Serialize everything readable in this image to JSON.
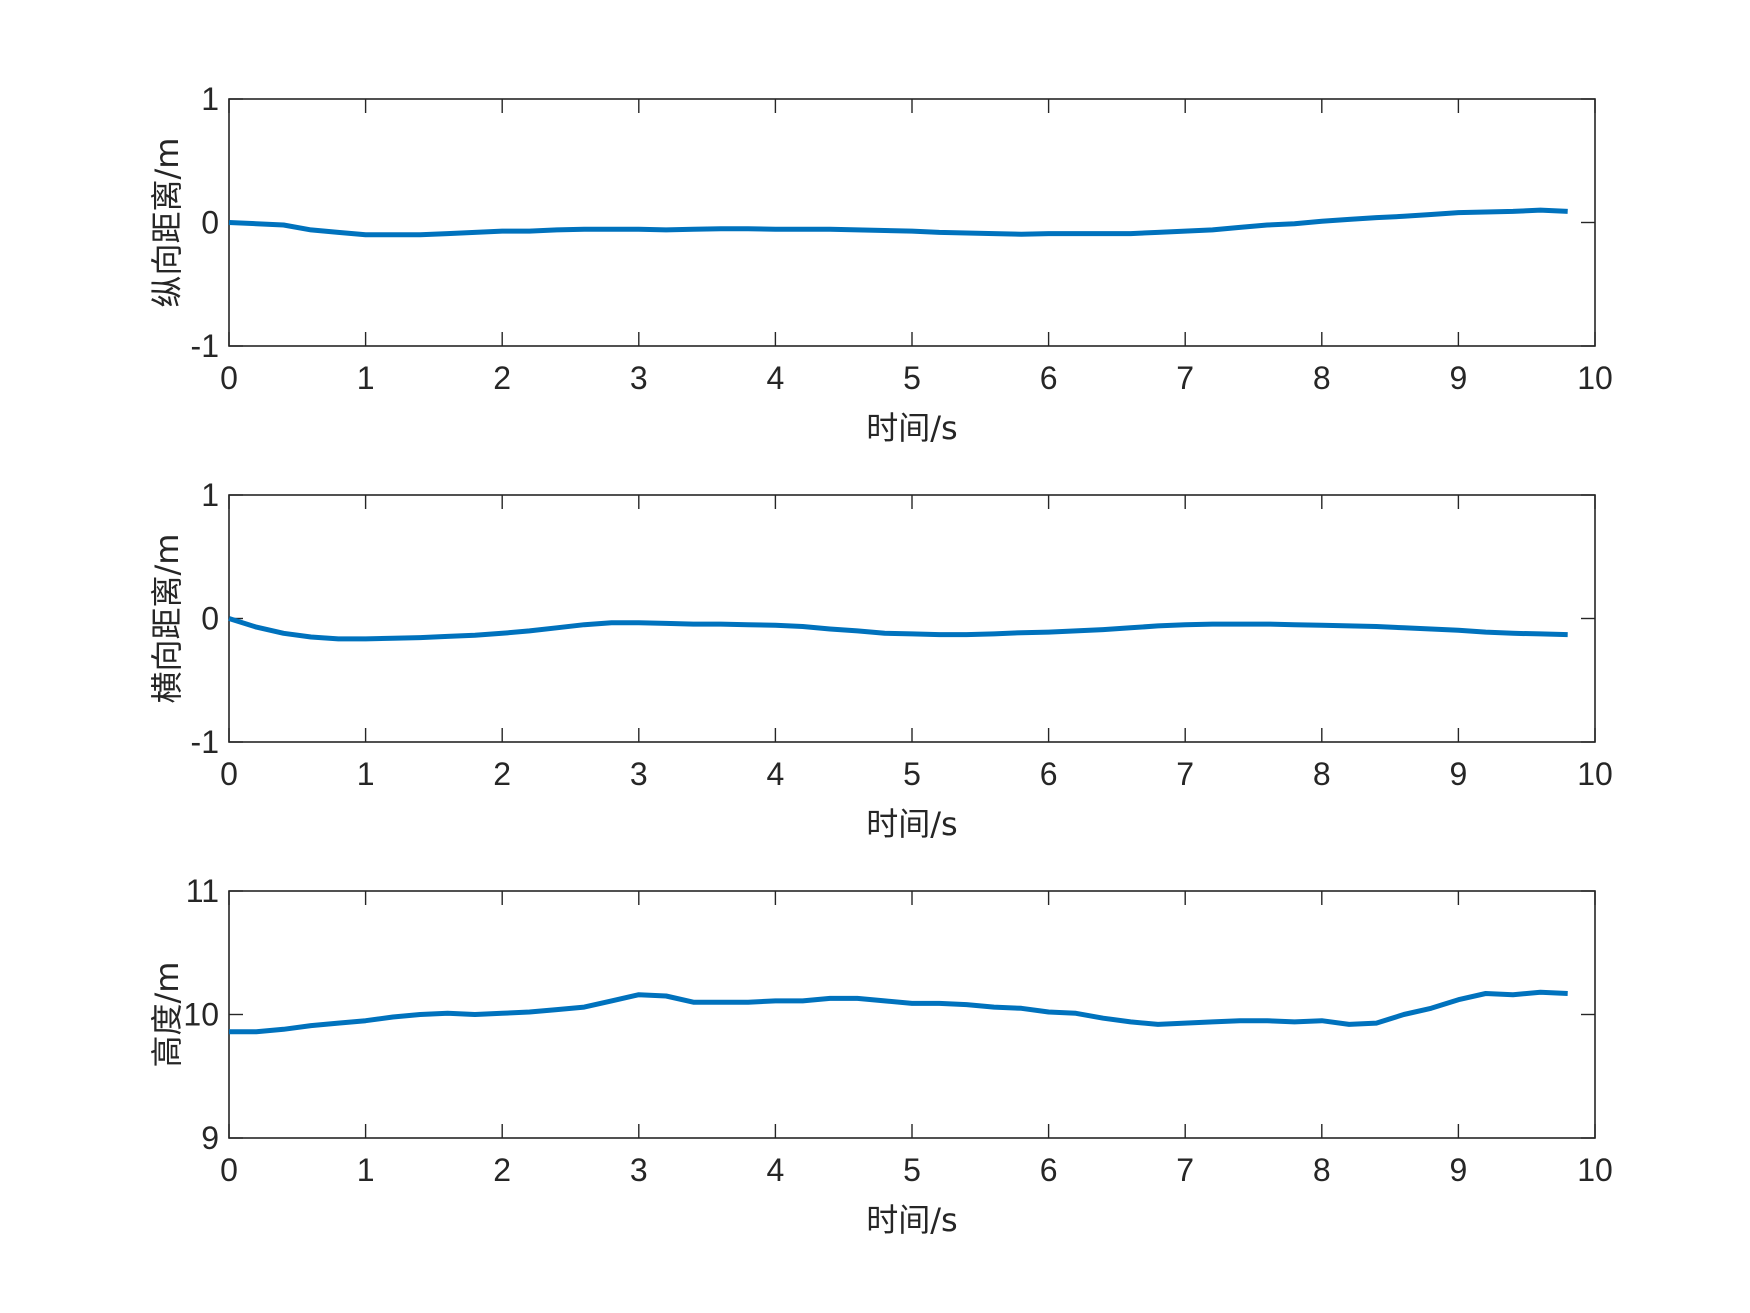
{
  "colors": {
    "series": "#0072BD",
    "axes": "#262626",
    "background": "#ffffff"
  },
  "chart_data": [
    {
      "type": "line",
      "xlabel": "时间/s",
      "ylabel": "纵向距离/m",
      "xlim": [
        0,
        10
      ],
      "ylim": [
        -1,
        1
      ],
      "xticks": [
        "0",
        "1",
        "2",
        "3",
        "4",
        "5",
        "6",
        "7",
        "8",
        "9",
        "10"
      ],
      "yticks": [
        "-1",
        "0",
        "1"
      ],
      "grid": false,
      "series": [
        {
          "x": [
            0,
            0.2,
            0.4,
            0.6,
            0.8,
            1.0,
            1.2,
            1.4,
            1.6,
            1.8,
            2.0,
            2.2,
            2.4,
            2.6,
            2.8,
            3.0,
            3.2,
            3.4,
            3.6,
            3.8,
            4.0,
            4.2,
            4.4,
            4.6,
            4.8,
            5.0,
            5.2,
            5.4,
            5.6,
            5.8,
            6.0,
            6.2,
            6.4,
            6.6,
            6.8,
            7.0,
            7.2,
            7.4,
            7.6,
            7.8,
            8.0,
            8.2,
            8.4,
            8.6,
            8.8,
            9.0,
            9.2,
            9.4,
            9.6,
            9.8
          ],
          "y": [
            0.0,
            -0.01,
            -0.02,
            -0.06,
            -0.08,
            -0.1,
            -0.1,
            -0.1,
            -0.09,
            -0.08,
            -0.07,
            -0.07,
            -0.06,
            -0.055,
            -0.055,
            -0.055,
            -0.06,
            -0.055,
            -0.05,
            -0.05,
            -0.055,
            -0.055,
            -0.055,
            -0.06,
            -0.065,
            -0.07,
            -0.08,
            -0.085,
            -0.09,
            -0.095,
            -0.09,
            -0.09,
            -0.09,
            -0.09,
            -0.08,
            -0.07,
            -0.06,
            -0.04,
            -0.02,
            -0.01,
            0.01,
            0.025,
            0.04,
            0.05,
            0.065,
            0.08,
            0.085,
            0.09,
            0.1,
            0.09
          ]
        }
      ]
    },
    {
      "type": "line",
      "xlabel": "时间/s",
      "ylabel": "横向距离/m",
      "xlim": [
        0,
        10
      ],
      "ylim": [
        -1,
        1
      ],
      "xticks": [
        "0",
        "1",
        "2",
        "3",
        "4",
        "5",
        "6",
        "7",
        "8",
        "9",
        "10"
      ],
      "yticks": [
        "-1",
        "0",
        "1"
      ],
      "grid": false,
      "series": [
        {
          "x": [
            0,
            0.2,
            0.4,
            0.6,
            0.8,
            1.0,
            1.2,
            1.4,
            1.6,
            1.8,
            2.0,
            2.2,
            2.4,
            2.6,
            2.8,
            3.0,
            3.2,
            3.4,
            3.6,
            3.8,
            4.0,
            4.2,
            4.4,
            4.6,
            4.8,
            5.0,
            5.2,
            5.4,
            5.6,
            5.8,
            6.0,
            6.2,
            6.4,
            6.6,
            6.8,
            7.0,
            7.2,
            7.4,
            7.6,
            7.8,
            8.0,
            8.2,
            8.4,
            8.6,
            8.8,
            9.0,
            9.2,
            9.4,
            9.6,
            9.8
          ],
          "y": [
            0.0,
            -0.07,
            -0.12,
            -0.15,
            -0.165,
            -0.165,
            -0.16,
            -0.155,
            -0.145,
            -0.135,
            -0.12,
            -0.1,
            -0.075,
            -0.05,
            -0.035,
            -0.035,
            -0.04,
            -0.045,
            -0.045,
            -0.05,
            -0.055,
            -0.065,
            -0.085,
            -0.1,
            -0.12,
            -0.125,
            -0.13,
            -0.13,
            -0.125,
            -0.115,
            -0.11,
            -0.1,
            -0.09,
            -0.075,
            -0.06,
            -0.05,
            -0.045,
            -0.045,
            -0.045,
            -0.05,
            -0.055,
            -0.06,
            -0.065,
            -0.075,
            -0.085,
            -0.095,
            -0.11,
            -0.12,
            -0.125,
            -0.13
          ]
        }
      ]
    },
    {
      "type": "line",
      "xlabel": "时间/s",
      "ylabel": "高度/m",
      "xlim": [
        0,
        10
      ],
      "ylim": [
        9,
        11
      ],
      "xticks": [
        "0",
        "1",
        "2",
        "3",
        "4",
        "5",
        "6",
        "7",
        "8",
        "9",
        "10"
      ],
      "yticks": [
        "9",
        "10",
        "11"
      ],
      "grid": false,
      "series": [
        {
          "x": [
            0,
            0.2,
            0.4,
            0.6,
            0.8,
            1.0,
            1.2,
            1.4,
            1.6,
            1.8,
            2.0,
            2.2,
            2.4,
            2.6,
            2.8,
            3.0,
            3.2,
            3.4,
            3.6,
            3.8,
            4.0,
            4.2,
            4.4,
            4.6,
            4.8,
            5.0,
            5.2,
            5.4,
            5.6,
            5.8,
            6.0,
            6.2,
            6.4,
            6.6,
            6.8,
            7.0,
            7.2,
            7.4,
            7.6,
            7.8,
            8.0,
            8.2,
            8.4,
            8.6,
            8.8,
            9.0,
            9.2,
            9.4,
            9.6,
            9.8
          ],
          "y": [
            9.86,
            9.86,
            9.88,
            9.91,
            9.93,
            9.95,
            9.98,
            10.0,
            10.01,
            10.0,
            10.01,
            10.02,
            10.04,
            10.06,
            10.11,
            10.16,
            10.15,
            10.1,
            10.1,
            10.1,
            10.11,
            10.11,
            10.13,
            10.13,
            10.11,
            10.09,
            10.09,
            10.08,
            10.06,
            10.05,
            10.02,
            10.01,
            9.97,
            9.94,
            9.92,
            9.93,
            9.94,
            9.95,
            9.95,
            9.94,
            9.95,
            9.92,
            9.93,
            10.0,
            10.05,
            10.12,
            10.17,
            10.16,
            10.18,
            10.17
          ]
        }
      ]
    }
  ]
}
